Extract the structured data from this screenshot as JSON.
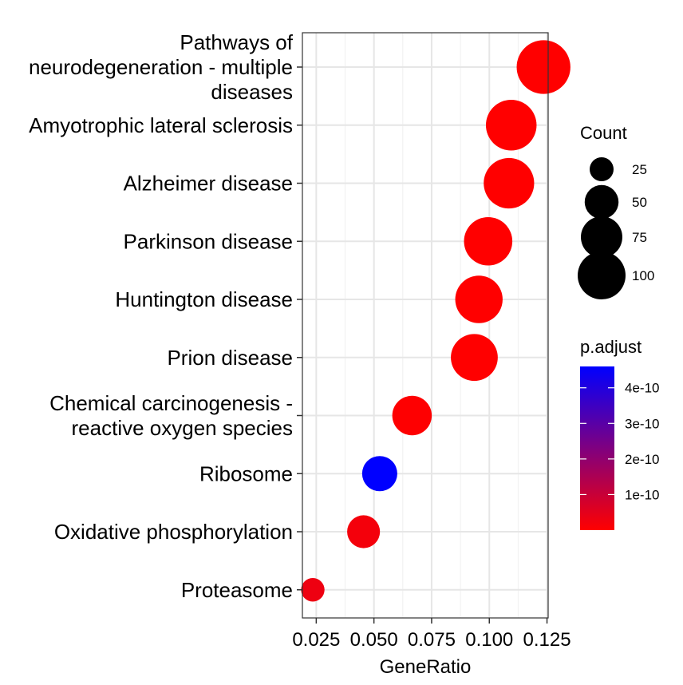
{
  "chart_data": {
    "type": "scatter",
    "title": "",
    "xlabel": "GeneRatio",
    "ylabel": "",
    "xlim": [
      0.019,
      0.1255
    ],
    "x_ticks": [
      0.025,
      0.05,
      0.075,
      0.1,
      0.125
    ],
    "x_tick_labels": [
      "0.025",
      "0.050",
      "0.075",
      "0.100",
      "0.125"
    ],
    "grid": true,
    "categories": [
      "Pathways of\nneurodegeneration - multiple\ndiseases",
      "Amyotrophic lateral sclerosis",
      "Alzheimer disease",
      "Parkinson disease",
      "Huntington disease",
      "Prion disease",
      "Chemical carcinogenesis -\nreactive oxygen species",
      "Ribosome",
      "Oxidative phosphorylation",
      "Proteasome"
    ],
    "points": [
      {
        "category": "Pathways of\nneurodegeneration - multiple\ndiseases",
        "gene_ratio": 0.1235,
        "count": 126,
        "p_adjust": 1e-20
      },
      {
        "category": "Amyotrophic lateral sclerosis",
        "gene_ratio": 0.1095,
        "count": 112,
        "p_adjust": 1e-18
      },
      {
        "category": "Alzheimer disease",
        "gene_ratio": 0.1085,
        "count": 111,
        "p_adjust": 1e-18
      },
      {
        "category": "Parkinson disease",
        "gene_ratio": 0.0995,
        "count": 102,
        "p_adjust": 1e-18
      },
      {
        "category": "Huntington disease",
        "gene_ratio": 0.0955,
        "count": 98,
        "p_adjust": 1e-17
      },
      {
        "category": "Prion disease",
        "gene_ratio": 0.0935,
        "count": 96,
        "p_adjust": 1e-16
      },
      {
        "category": "Chemical carcinogenesis -\nreactive oxygen species",
        "gene_ratio": 0.0665,
        "count": 68,
        "p_adjust": 1e-12
      },
      {
        "category": "Ribosome",
        "gene_ratio": 0.0525,
        "count": 54,
        "p_adjust": 4.6e-10
      },
      {
        "category": "Oxidative phosphorylation",
        "gene_ratio": 0.0455,
        "count": 47,
        "p_adjust": 2e-11
      },
      {
        "category": "Proteasome",
        "gene_ratio": 0.0235,
        "count": 24,
        "p_adjust": 3e-11
      }
    ],
    "size_legend": {
      "title": "Count",
      "breaks": [
        25,
        50,
        75,
        100
      ],
      "labels": [
        "25",
        "50",
        "75",
        "100"
      ]
    },
    "color_legend": {
      "title": "p.adjust",
      "range": [
        0,
        4.6e-10
      ],
      "breaks": [
        1e-10,
        2e-10,
        3e-10,
        4e-10
      ],
      "labels": [
        "1e-10",
        "2e-10",
        "3e-10",
        "4e-10"
      ],
      "low_color": "#ff0000",
      "high_color": "#0000ff"
    }
  }
}
